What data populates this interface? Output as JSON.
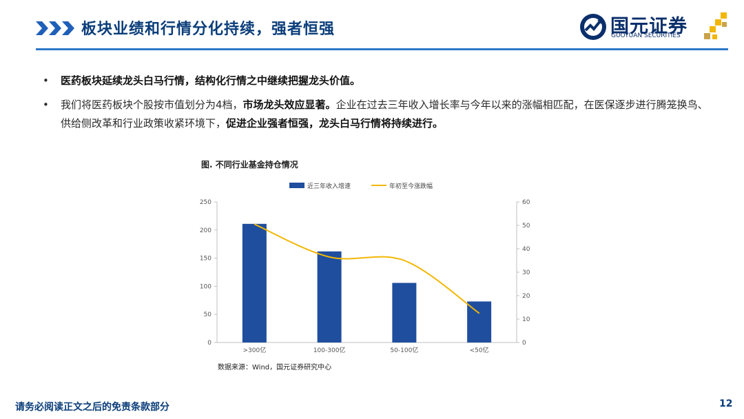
{
  "header": {
    "title": "板块业绩和行情分化持续，强者恒强",
    "logo_cn": "国元证券",
    "logo_en": "GUOYUAN SECURITIES"
  },
  "bullets": [
    {
      "segments": [
        {
          "text": "医药板块延续龙头白马行情，结构化行情之中继续把握龙头价值。",
          "bold": true
        }
      ]
    },
    {
      "segments": [
        {
          "text": "我们将医药板块个股按市值划分为4档，",
          "bold": false
        },
        {
          "text": "市场龙头效应显著。",
          "bold": true
        },
        {
          "text": "企业在过去三年收入增长率与今年以来的涨幅相匹配，在医保逐步进行腾笼换鸟、供给侧改革和行业政策收紧环境下，",
          "bold": false
        },
        {
          "text": "促进企业强者恒强，龙头白马行情将持续进行。",
          "bold": true
        }
      ]
    }
  ],
  "chart_data": {
    "type": "bar",
    "title": "图. 不同行业基金持仓情况",
    "categories": [
      ">300亿",
      "100-300亿",
      "50-100亿",
      "<50亿"
    ],
    "series": [
      {
        "name": "近三年收入增速",
        "type": "bar",
        "axis": "left",
        "values": [
          211,
          162,
          106,
          73
        ],
        "color": "#1f4e9e"
      },
      {
        "name": "年初至今涨跌幅",
        "type": "line",
        "axis": "right",
        "values": [
          50.5,
          36.5,
          35.0,
          12.5
        ],
        "color": "#f2b705"
      }
    ],
    "y_left": {
      "min": 0,
      "max": 250,
      "ticks": [
        0,
        50,
        100,
        150,
        200,
        250
      ]
    },
    "y_right": {
      "min": 0,
      "max": 60,
      "ticks": [
        0,
        10,
        20,
        30,
        40,
        50,
        60
      ]
    },
    "legend_position": "top",
    "grid": false,
    "source": "数据来源：Wind，国元证券研究中心"
  },
  "footer": {
    "note": "请务必阅读正文之后的免责条款部分",
    "page": "12"
  }
}
